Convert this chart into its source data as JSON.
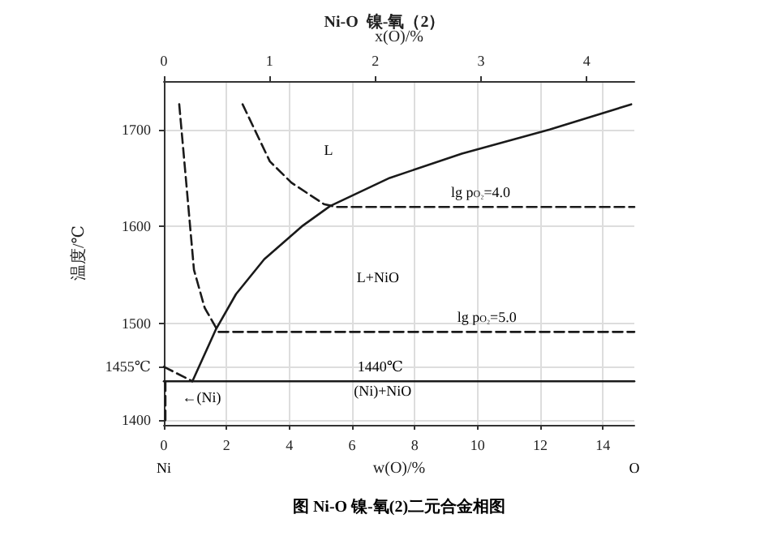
{
  "chart_data": {
    "type": "line",
    "title": "Ni-O  镍-氧（2）",
    "xlabel": "w(O)/%",
    "x2label": "x(O)/%",
    "ylabel": "温度/℃",
    "xlim": [
      0,
      15
    ],
    "xticks": [
      0,
      2,
      4,
      6,
      8,
      10,
      12,
      14
    ],
    "x2lim": [
      0,
      4.45
    ],
    "x2ticks": [
      0,
      1,
      2,
      3,
      4
    ],
    "ylim": [
      1395,
      1750
    ],
    "yticks": [
      1400,
      {
        "value": 1455,
        "label": "1455℃"
      },
      1500,
      1600,
      1700
    ],
    "grid": true,
    "marker": "none",
    "series": [
      {
        "color": "#1a1a1a",
        "line_style": "solid",
        "x": [
          0.91,
          1.65,
          2.3,
          3.2,
          4.4,
          5.3,
          7.2,
          9.5,
          12.3,
          14.9
        ],
        "values": [
          1440,
          1493,
          1530,
          1566,
          1600,
          1621,
          1650,
          1675,
          1700,
          1726
        ]
      },
      {
        "color": "#1a1a1a",
        "line_style": "dashed",
        "x": [
          0.49,
          0.7,
          0.96,
          1.3,
          1.74,
          15
        ],
        "values": [
          1726,
          1650,
          1555,
          1516,
          1491,
          1491
        ]
      },
      {
        "color": "#1a1a1a",
        "line_style": "dashed",
        "x": [
          2.51,
          3.38,
          4.07,
          5.1,
          5.5,
          15
        ],
        "values": [
          1726,
          1667,
          1645,
          1623,
          1620,
          1620
        ]
      },
      {
        "color": "#1a1a1a",
        "line_style": "dashed",
        "x": [
          0,
          0.91
        ],
        "values": [
          1455,
          1440
        ]
      },
      {
        "color": "#1a1a1a",
        "line_style": "dashed",
        "x": [
          0.05,
          0.05
        ],
        "values": [
          1440,
          1395
        ]
      },
      {
        "color": "#1a1a1a",
        "line_style": "solid",
        "x": [
          0,
          15
        ],
        "values": [
          1440,
          1440
        ]
      }
    ],
    "annotations": [
      "L",
      "L+NiO",
      {
        "text": "lg p$_{O₂}$=4.0",
        "x": 10.1,
        "y": 1620
      },
      {
        "text": "lg p$_{O₂}$=5.0",
        "x": 10.3,
        "y": 1491
      },
      {
        "text": "1440℃",
        "x": 6.9,
        "y": 1440
      },
      "(Ni)+NiO",
      "←(Ni)",
      "Ni",
      "O",
      "图 Ni-O 镍-氧(2)二元合金相图"
    ]
  }
}
